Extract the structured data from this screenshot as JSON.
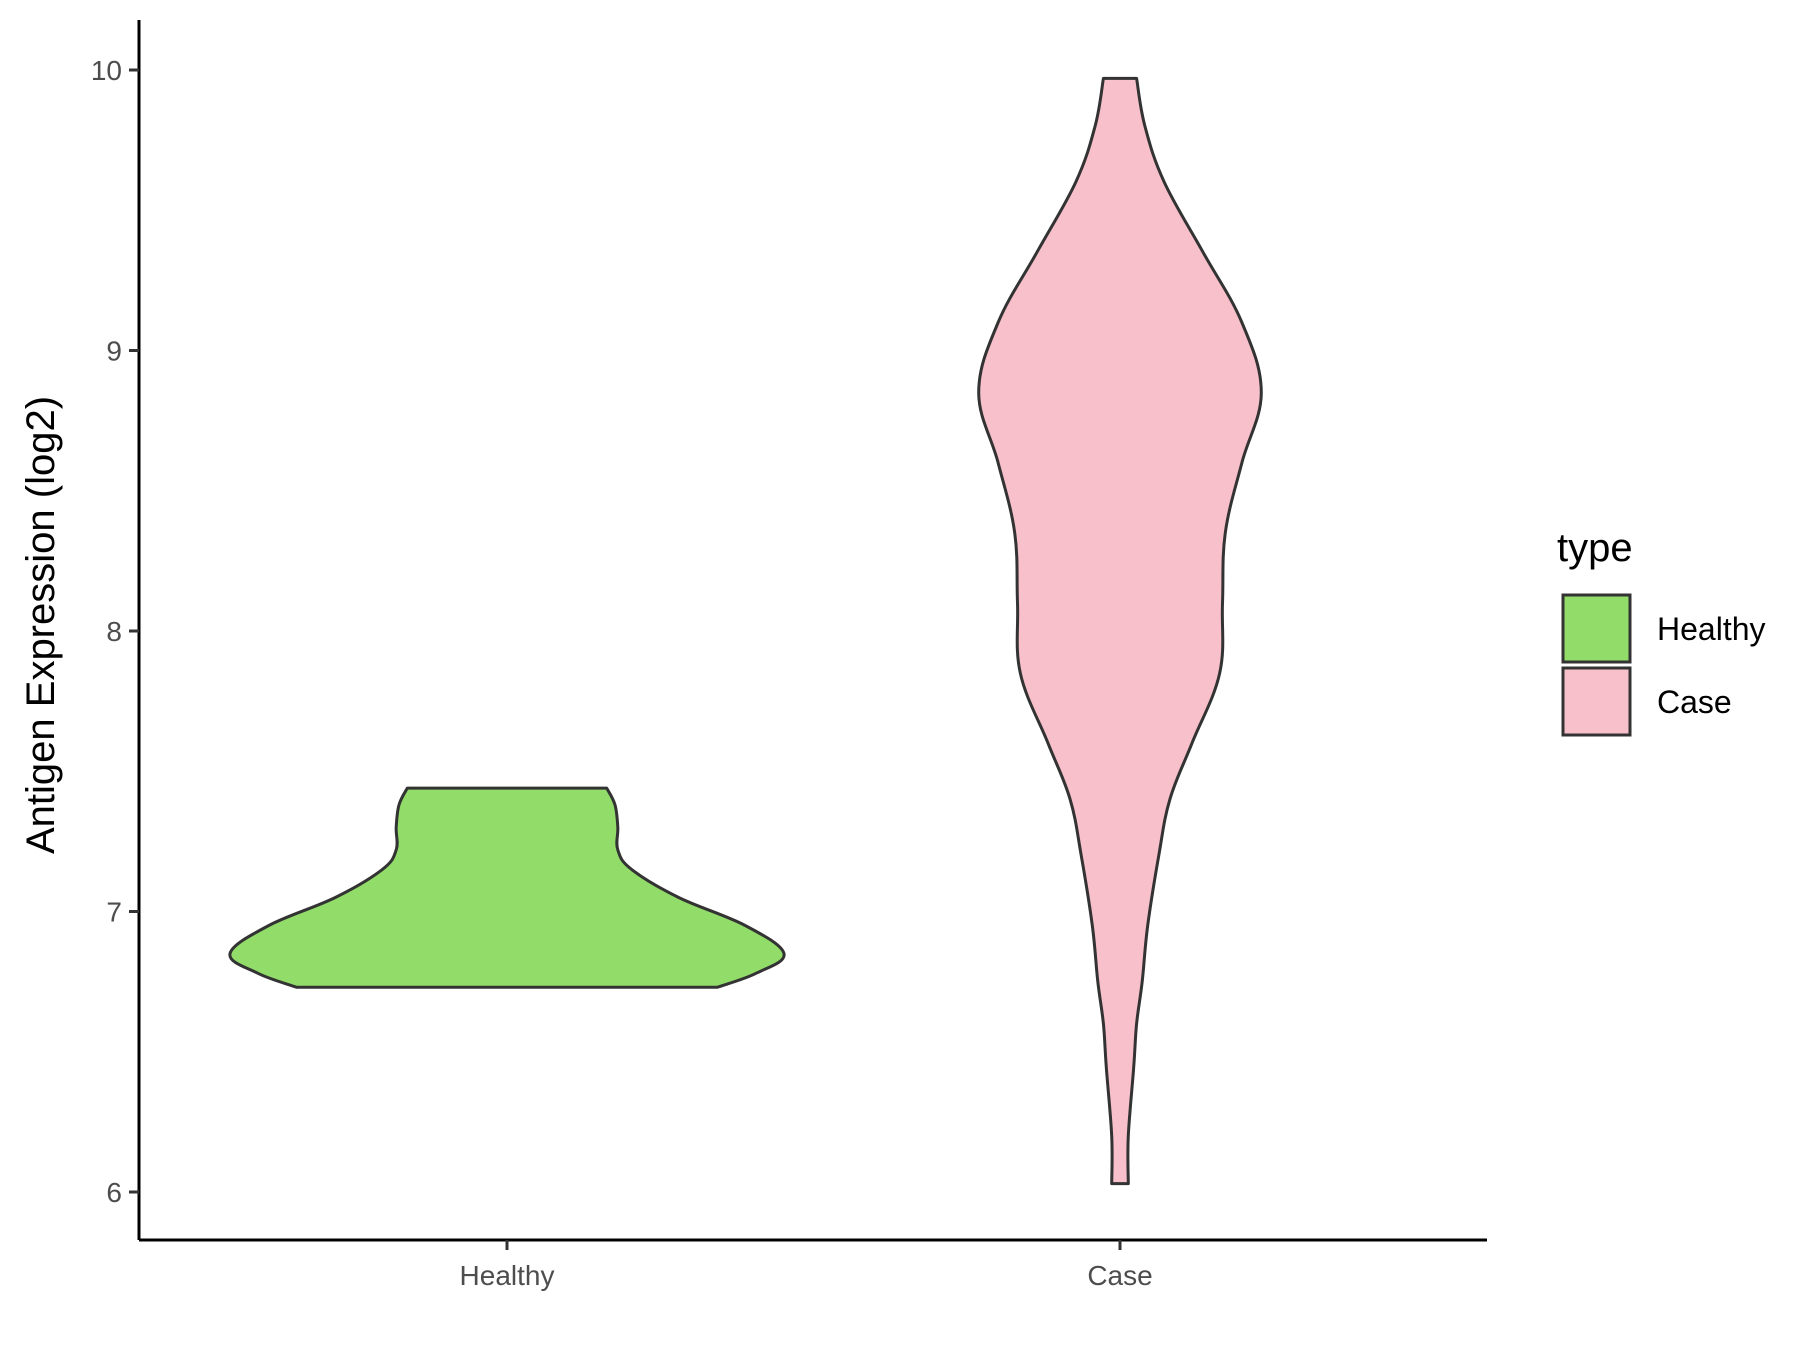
{
  "chart_data": {
    "type": "violin",
    "ylabel": "Antigen Expression (log2)",
    "xlabel": "",
    "ylim": [
      5.85,
      10.2
    ],
    "yticks": [
      "6",
      "7",
      "8",
      "9",
      "10"
    ],
    "grid": false,
    "legend": {
      "title": "type",
      "placement": "right",
      "entries": [
        {
          "label": "Healthy",
          "color": "#92dc6a"
        },
        {
          "label": "Case",
          "color": "#f7c0cb"
        }
      ]
    },
    "categories": [
      "Healthy",
      "Case"
    ],
    "series": [
      {
        "name": "Healthy",
        "color": "#92dc6a",
        "min": 6.73,
        "max": 7.44,
        "density": [
          [
            6.73,
            0.76
          ],
          [
            6.78,
            0.9
          ],
          [
            6.85,
            1.0
          ],
          [
            6.95,
            0.86
          ],
          [
            7.05,
            0.62
          ],
          [
            7.15,
            0.45
          ],
          [
            7.22,
            0.4
          ],
          [
            7.3,
            0.4
          ],
          [
            7.38,
            0.39
          ],
          [
            7.44,
            0.36
          ]
        ]
      },
      {
        "name": "Case",
        "color": "#f7c0cb",
        "min": 6.03,
        "max": 9.97,
        "density": [
          [
            6.03,
            0.03
          ],
          [
            6.2,
            0.03
          ],
          [
            6.45,
            0.05
          ],
          [
            6.6,
            0.06
          ],
          [
            6.75,
            0.08
          ],
          [
            6.95,
            0.1
          ],
          [
            7.2,
            0.14
          ],
          [
            7.4,
            0.18
          ],
          [
            7.6,
            0.26
          ],
          [
            7.85,
            0.36
          ],
          [
            8.1,
            0.37
          ],
          [
            8.35,
            0.38
          ],
          [
            8.6,
            0.44
          ],
          [
            8.85,
            0.51
          ],
          [
            9.1,
            0.44
          ],
          [
            9.35,
            0.3
          ],
          [
            9.6,
            0.16
          ],
          [
            9.8,
            0.09
          ],
          [
            9.97,
            0.06
          ]
        ]
      }
    ]
  }
}
